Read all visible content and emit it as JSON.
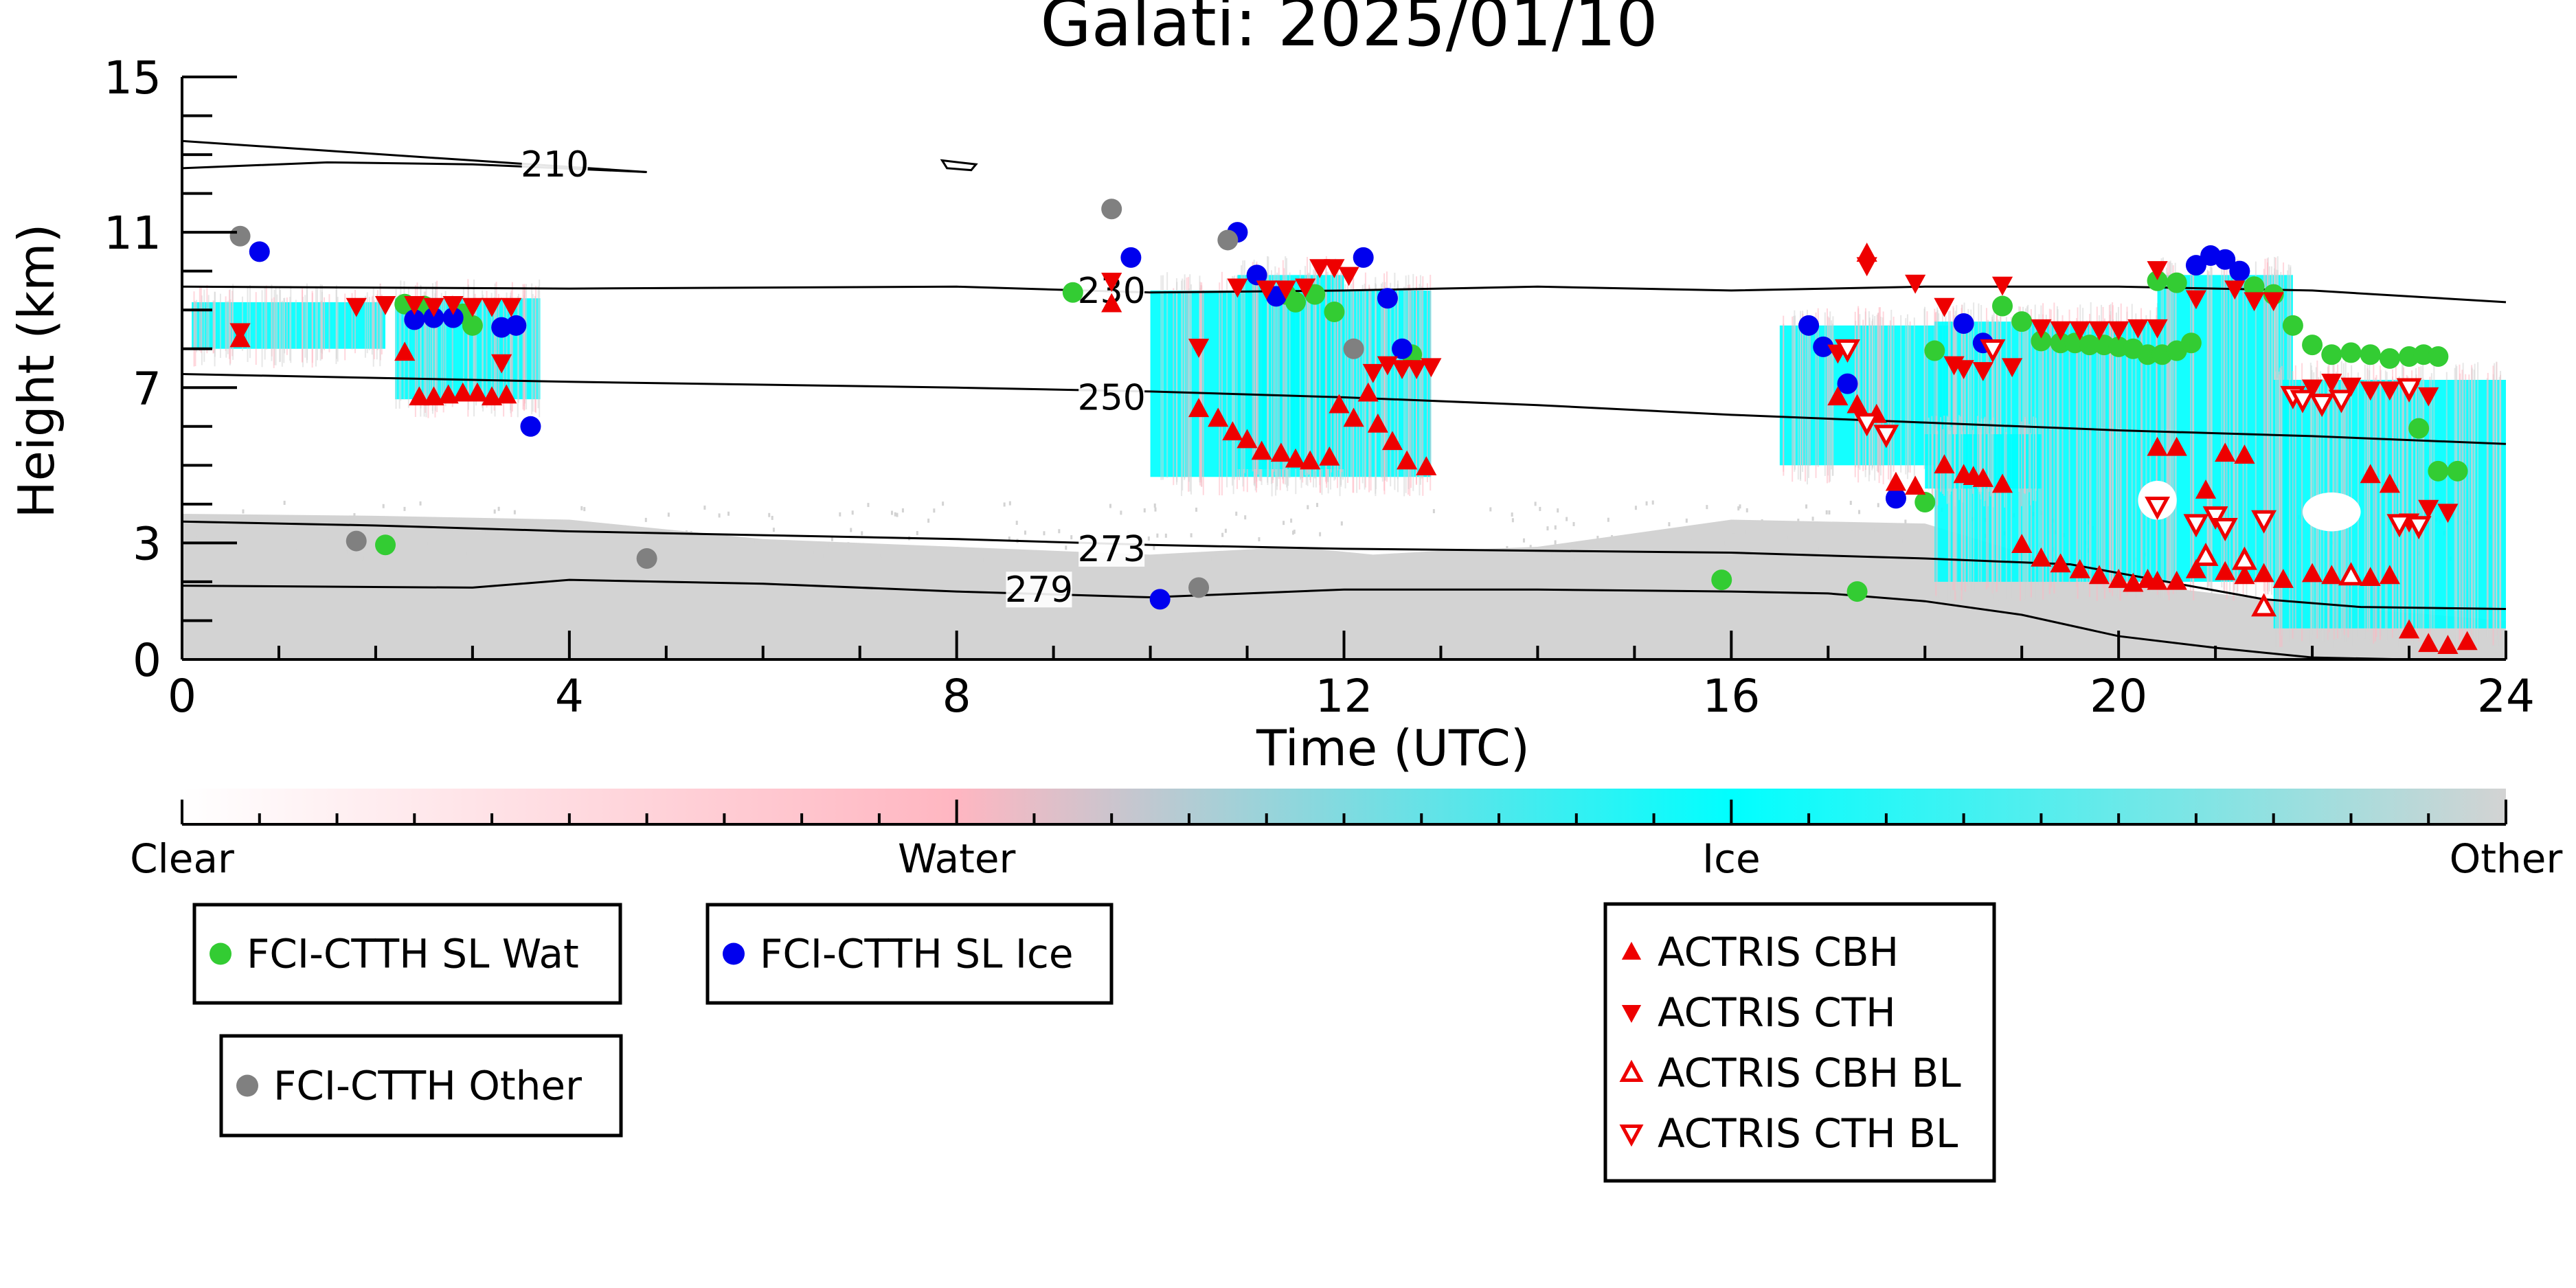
{
  "chart_data": {
    "type": "scatter",
    "title": "Galati: 2025/01/10",
    "xlabel": "Time (UTC)",
    "ylabel": "Height (km)",
    "xlim": [
      0,
      24
    ],
    "ylim": [
      0,
      15
    ],
    "x_ticks": [
      0,
      4,
      8,
      12,
      16,
      20,
      24
    ],
    "y_ticks": [
      0,
      3,
      7,
      11,
      15
    ],
    "grid": false,
    "background": {
      "description": "Cloud classification curtain",
      "colorbar_labels": [
        "Clear",
        "Water",
        "Ice",
        "Other"
      ],
      "colors": {
        "Clear": "#ffffff",
        "Water": "#ffb6c1",
        "Ice": "#00ffff",
        "Other": "#d3d3d3"
      }
    },
    "contours": [
      {
        "label": "210",
        "points": [
          [
            0,
            13.35
          ],
          [
            1.5,
            13.1
          ],
          [
            3,
            12.85
          ],
          [
            4.8,
            12.55
          ]
        ],
        "points2": [
          [
            0,
            12.65
          ],
          [
            1.5,
            12.8
          ],
          [
            3,
            12.75
          ],
          [
            4.8,
            12.55
          ]
        ]
      },
      {
        "label": "230",
        "points": [
          [
            0,
            9.6
          ],
          [
            4,
            9.55
          ],
          [
            8,
            9.6
          ],
          [
            10,
            9.45
          ],
          [
            12,
            9.5
          ],
          [
            14,
            9.6
          ],
          [
            16,
            9.5
          ],
          [
            18,
            9.6
          ],
          [
            20,
            9.6
          ],
          [
            22,
            9.5
          ],
          [
            24,
            9.2
          ]
        ]
      },
      {
        "label": "250",
        "points": [
          [
            0,
            7.35
          ],
          [
            4,
            7.15
          ],
          [
            8,
            7.0
          ],
          [
            10,
            6.9
          ],
          [
            12,
            6.75
          ],
          [
            14,
            6.55
          ],
          [
            16,
            6.3
          ],
          [
            18,
            6.1
          ],
          [
            20,
            5.9
          ],
          [
            22,
            5.75
          ],
          [
            24,
            5.55
          ]
        ]
      },
      {
        "label": "273",
        "points": [
          [
            0,
            3.55
          ],
          [
            2,
            3.45
          ],
          [
            4,
            3.3
          ],
          [
            6,
            3.2
          ],
          [
            8,
            3.1
          ],
          [
            10,
            2.95
          ],
          [
            12,
            2.85
          ],
          [
            14,
            2.8
          ],
          [
            16,
            2.75
          ],
          [
            18,
            2.6
          ],
          [
            19.5,
            2.45
          ],
          [
            20.5,
            2.0
          ],
          [
            21.5,
            1.55
          ],
          [
            22.5,
            1.35
          ],
          [
            24,
            1.3
          ]
        ]
      },
      {
        "label": "279",
        "points": [
          [
            0,
            1.9
          ],
          [
            3,
            1.85
          ],
          [
            4,
            2.05
          ],
          [
            6,
            1.95
          ],
          [
            8,
            1.75
          ],
          [
            10,
            1.6
          ],
          [
            11,
            1.7
          ],
          [
            12,
            1.8
          ],
          [
            14,
            1.8
          ],
          [
            16,
            1.75
          ],
          [
            17,
            1.7
          ],
          [
            18,
            1.5
          ],
          [
            19,
            1.15
          ],
          [
            20,
            0.6
          ],
          [
            21,
            0.3
          ],
          [
            22,
            0.05
          ],
          [
            23,
            0.0
          ]
        ]
      }
    ],
    "series": [
      {
        "name": "FCI-CTTH SL Wat",
        "marker": "circle",
        "color": "#33cc33",
        "points": [
          [
            2.1,
            2.95
          ],
          [
            2.3,
            9.15
          ],
          [
            2.5,
            9.1
          ],
          [
            2.9,
            8.9
          ],
          [
            3.0,
            8.6
          ],
          [
            9.2,
            9.45
          ],
          [
            11.4,
            9.4
          ],
          [
            11.5,
            9.2
          ],
          [
            11.7,
            9.4
          ],
          [
            11.9,
            8.95
          ],
          [
            12.7,
            7.85
          ],
          [
            17.3,
            1.75
          ],
          [
            18.0,
            4.05
          ],
          [
            18.1,
            7.95
          ],
          [
            18.8,
            9.1
          ],
          [
            19.0,
            8.7
          ],
          [
            19.2,
            8.2
          ],
          [
            19.4,
            8.15
          ],
          [
            19.55,
            8.15
          ],
          [
            19.7,
            8.1
          ],
          [
            19.85,
            8.1
          ],
          [
            20.0,
            8.05
          ],
          [
            20.15,
            8.0
          ],
          [
            20.3,
            7.85
          ],
          [
            20.45,
            7.85
          ],
          [
            20.6,
            7.95
          ],
          [
            20.75,
            8.15
          ],
          [
            20.4,
            9.75
          ],
          [
            20.6,
            9.7
          ],
          [
            21.4,
            9.6
          ],
          [
            21.6,
            9.4
          ],
          [
            21.8,
            8.6
          ],
          [
            22.0,
            8.1
          ],
          [
            22.2,
            7.85
          ],
          [
            22.4,
            7.9
          ],
          [
            22.6,
            7.85
          ],
          [
            22.8,
            7.75
          ],
          [
            23.0,
            7.8
          ],
          [
            23.15,
            7.85
          ],
          [
            23.3,
            7.8
          ],
          [
            23.1,
            5.95
          ],
          [
            23.3,
            4.85
          ],
          [
            23.5,
            4.85
          ],
          [
            15.9,
            2.05
          ]
        ]
      },
      {
        "name": "FCI-CTTH SL Ice",
        "marker": "circle",
        "color": "#0000ee",
        "points": [
          [
            0.8,
            10.5
          ],
          [
            2.4,
            8.75
          ],
          [
            2.6,
            8.8
          ],
          [
            2.8,
            8.8
          ],
          [
            3.3,
            8.55
          ],
          [
            3.45,
            8.6
          ],
          [
            3.6,
            6.0
          ],
          [
            9.8,
            10.35
          ],
          [
            10.9,
            11.0
          ],
          [
            11.1,
            9.9
          ],
          [
            11.3,
            9.35
          ],
          [
            12.2,
            10.35
          ],
          [
            12.45,
            9.3
          ],
          [
            12.6,
            8.0
          ],
          [
            10.1,
            1.55
          ],
          [
            16.8,
            8.6
          ],
          [
            16.95,
            8.05
          ],
          [
            17.2,
            7.1
          ],
          [
            17.7,
            4.15
          ],
          [
            18.4,
            8.65
          ],
          [
            18.6,
            8.15
          ],
          [
            20.8,
            10.15
          ],
          [
            20.95,
            10.4
          ],
          [
            21.1,
            10.3
          ],
          [
            21.25,
            10.0
          ]
        ]
      },
      {
        "name": "FCI-CTTH Other",
        "marker": "circle",
        "color": "#808080",
        "points": [
          [
            0.6,
            10.9
          ],
          [
            1.8,
            3.05
          ],
          [
            4.8,
            2.6
          ],
          [
            9.6,
            11.6
          ],
          [
            10.5,
            1.85
          ],
          [
            10.8,
            10.8
          ],
          [
            12.1,
            8.0
          ]
        ]
      },
      {
        "name": "ACTRIS CBH",
        "marker": "triangle-up",
        "color": "#ee0000",
        "filled": true,
        "points": [
          [
            0.6,
            8.25
          ],
          [
            2.3,
            7.9
          ],
          [
            2.45,
            6.75
          ],
          [
            2.6,
            6.75
          ],
          [
            2.75,
            6.8
          ],
          [
            2.9,
            6.85
          ],
          [
            3.05,
            6.85
          ],
          [
            3.2,
            6.75
          ],
          [
            3.35,
            6.8
          ],
          [
            10.5,
            6.45
          ],
          [
            10.7,
            6.2
          ],
          [
            10.85,
            5.85
          ],
          [
            11.0,
            5.65
          ],
          [
            11.15,
            5.35
          ],
          [
            11.35,
            5.3
          ],
          [
            11.5,
            5.15
          ],
          [
            11.65,
            5.1
          ],
          [
            11.85,
            5.2
          ],
          [
            11.95,
            6.55
          ],
          [
            12.1,
            6.2
          ],
          [
            12.25,
            6.85
          ],
          [
            12.35,
            6.05
          ],
          [
            12.5,
            5.6
          ],
          [
            12.65,
            5.1
          ],
          [
            12.85,
            4.95
          ],
          [
            9.6,
            9.15
          ],
          [
            17.4,
            10.45
          ],
          [
            17.1,
            6.75
          ],
          [
            17.3,
            6.55
          ],
          [
            17.5,
            6.3
          ],
          [
            17.7,
            4.55
          ],
          [
            17.9,
            4.45
          ],
          [
            18.2,
            5.0
          ],
          [
            18.4,
            4.75
          ],
          [
            18.5,
            4.7
          ],
          [
            18.6,
            4.65
          ],
          [
            18.8,
            4.5
          ],
          [
            19.0,
            2.95
          ],
          [
            19.2,
            2.6
          ],
          [
            19.4,
            2.45
          ],
          [
            19.6,
            2.3
          ],
          [
            19.8,
            2.15
          ],
          [
            20.0,
            2.05
          ],
          [
            20.15,
            1.95
          ],
          [
            20.3,
            2.05
          ],
          [
            20.4,
            2.0
          ],
          [
            20.6,
            2.0
          ],
          [
            20.8,
            2.3
          ],
          [
            21.1,
            2.25
          ],
          [
            21.3,
            2.15
          ],
          [
            21.5,
            2.2
          ],
          [
            21.7,
            2.05
          ],
          [
            22.0,
            2.2
          ],
          [
            22.2,
            2.15
          ],
          [
            22.4,
            2.2
          ],
          [
            22.6,
            2.1
          ],
          [
            22.8,
            2.15
          ],
          [
            23.0,
            0.75
          ],
          [
            23.2,
            0.4
          ],
          [
            23.4,
            0.35
          ],
          [
            23.6,
            0.45
          ],
          [
            20.4,
            5.45
          ],
          [
            20.6,
            5.45
          ],
          [
            20.9,
            4.35
          ],
          [
            21.1,
            5.3
          ],
          [
            21.3,
            5.25
          ],
          [
            22.6,
            4.75
          ],
          [
            22.8,
            4.5
          ]
        ]
      },
      {
        "name": "ACTRIS CTH",
        "marker": "triangle-down",
        "color": "#ee0000",
        "filled": true,
        "points": [
          [
            0.6,
            8.45
          ],
          [
            1.8,
            9.1
          ],
          [
            2.1,
            9.15
          ],
          [
            2.4,
            9.15
          ],
          [
            2.6,
            9.1
          ],
          [
            2.8,
            9.15
          ],
          [
            3.0,
            9.1
          ],
          [
            3.2,
            9.1
          ],
          [
            3.4,
            9.1
          ],
          [
            3.3,
            7.65
          ],
          [
            9.6,
            9.75
          ],
          [
            10.5,
            8.05
          ],
          [
            10.9,
            9.6
          ],
          [
            11.2,
            9.55
          ],
          [
            11.4,
            9.55
          ],
          [
            11.6,
            9.6
          ],
          [
            11.75,
            10.1
          ],
          [
            11.9,
            10.1
          ],
          [
            12.05,
            9.9
          ],
          [
            12.3,
            7.4
          ],
          [
            12.45,
            7.6
          ],
          [
            12.6,
            7.5
          ],
          [
            12.75,
            7.5
          ],
          [
            12.9,
            7.55
          ],
          [
            17.4,
            10.15
          ],
          [
            17.1,
            7.9
          ],
          [
            17.9,
            9.7
          ],
          [
            18.2,
            9.1
          ],
          [
            18.8,
            9.65
          ],
          [
            19.2,
            8.55
          ],
          [
            19.4,
            8.5
          ],
          [
            19.6,
            8.5
          ],
          [
            19.8,
            8.5
          ],
          [
            20.0,
            8.5
          ],
          [
            20.2,
            8.55
          ],
          [
            20.4,
            8.55
          ],
          [
            20.4,
            10.05
          ],
          [
            21.2,
            9.55
          ],
          [
            21.4,
            9.25
          ],
          [
            20.8,
            9.3
          ],
          [
            21.6,
            9.25
          ],
          [
            18.3,
            7.6
          ],
          [
            18.4,
            7.5
          ],
          [
            18.6,
            7.45
          ],
          [
            18.9,
            7.55
          ],
          [
            21.8,
            6.75
          ],
          [
            22.0,
            7.0
          ],
          [
            22.2,
            7.15
          ],
          [
            22.4,
            7.05
          ],
          [
            22.6,
            6.95
          ],
          [
            22.8,
            6.95
          ],
          [
            23.0,
            6.9
          ],
          [
            23.2,
            6.8
          ],
          [
            23.0,
            3.55
          ],
          [
            23.2,
            3.9
          ],
          [
            23.4,
            3.8
          ]
        ]
      },
      {
        "name": "ACTRIS CBH BL",
        "marker": "triangle-up",
        "color": "#ee0000",
        "filled": false,
        "points": [
          [
            20.9,
            2.65
          ],
          [
            21.3,
            2.55
          ],
          [
            21.5,
            1.35
          ],
          [
            22.4,
            2.15
          ]
        ]
      },
      {
        "name": "ACTRIS CTH BL",
        "marker": "triangle-down",
        "color": "#ee0000",
        "filled": false,
        "points": [
          [
            17.2,
            8.0
          ],
          [
            17.4,
            6.1
          ],
          [
            17.6,
            5.8
          ],
          [
            18.7,
            8.0
          ],
          [
            20.4,
            3.95
          ],
          [
            20.8,
            3.5
          ],
          [
            21.0,
            3.7
          ],
          [
            21.1,
            3.4
          ],
          [
            21.5,
            3.6
          ],
          [
            21.8,
            6.8
          ],
          [
            21.9,
            6.7
          ],
          [
            22.1,
            6.6
          ],
          [
            22.3,
            6.7
          ],
          [
            22.9,
            3.5
          ],
          [
            23.1,
            3.45
          ],
          [
            23.0,
            7.0
          ]
        ]
      }
    ],
    "legend": {
      "boxes": [
        {
          "entries": [
            "FCI-CTTH SL Wat"
          ]
        },
        {
          "entries": [
            "FCI-CTTH SL Ice"
          ]
        },
        {
          "entries": [
            "FCI-CTTH Other"
          ]
        },
        {
          "entries": [
            "ACTRIS CBH",
            "ACTRIS CTH",
            "ACTRIS CBH BL",
            "ACTRIS CTH BL"
          ]
        }
      ],
      "placement": "below"
    }
  }
}
